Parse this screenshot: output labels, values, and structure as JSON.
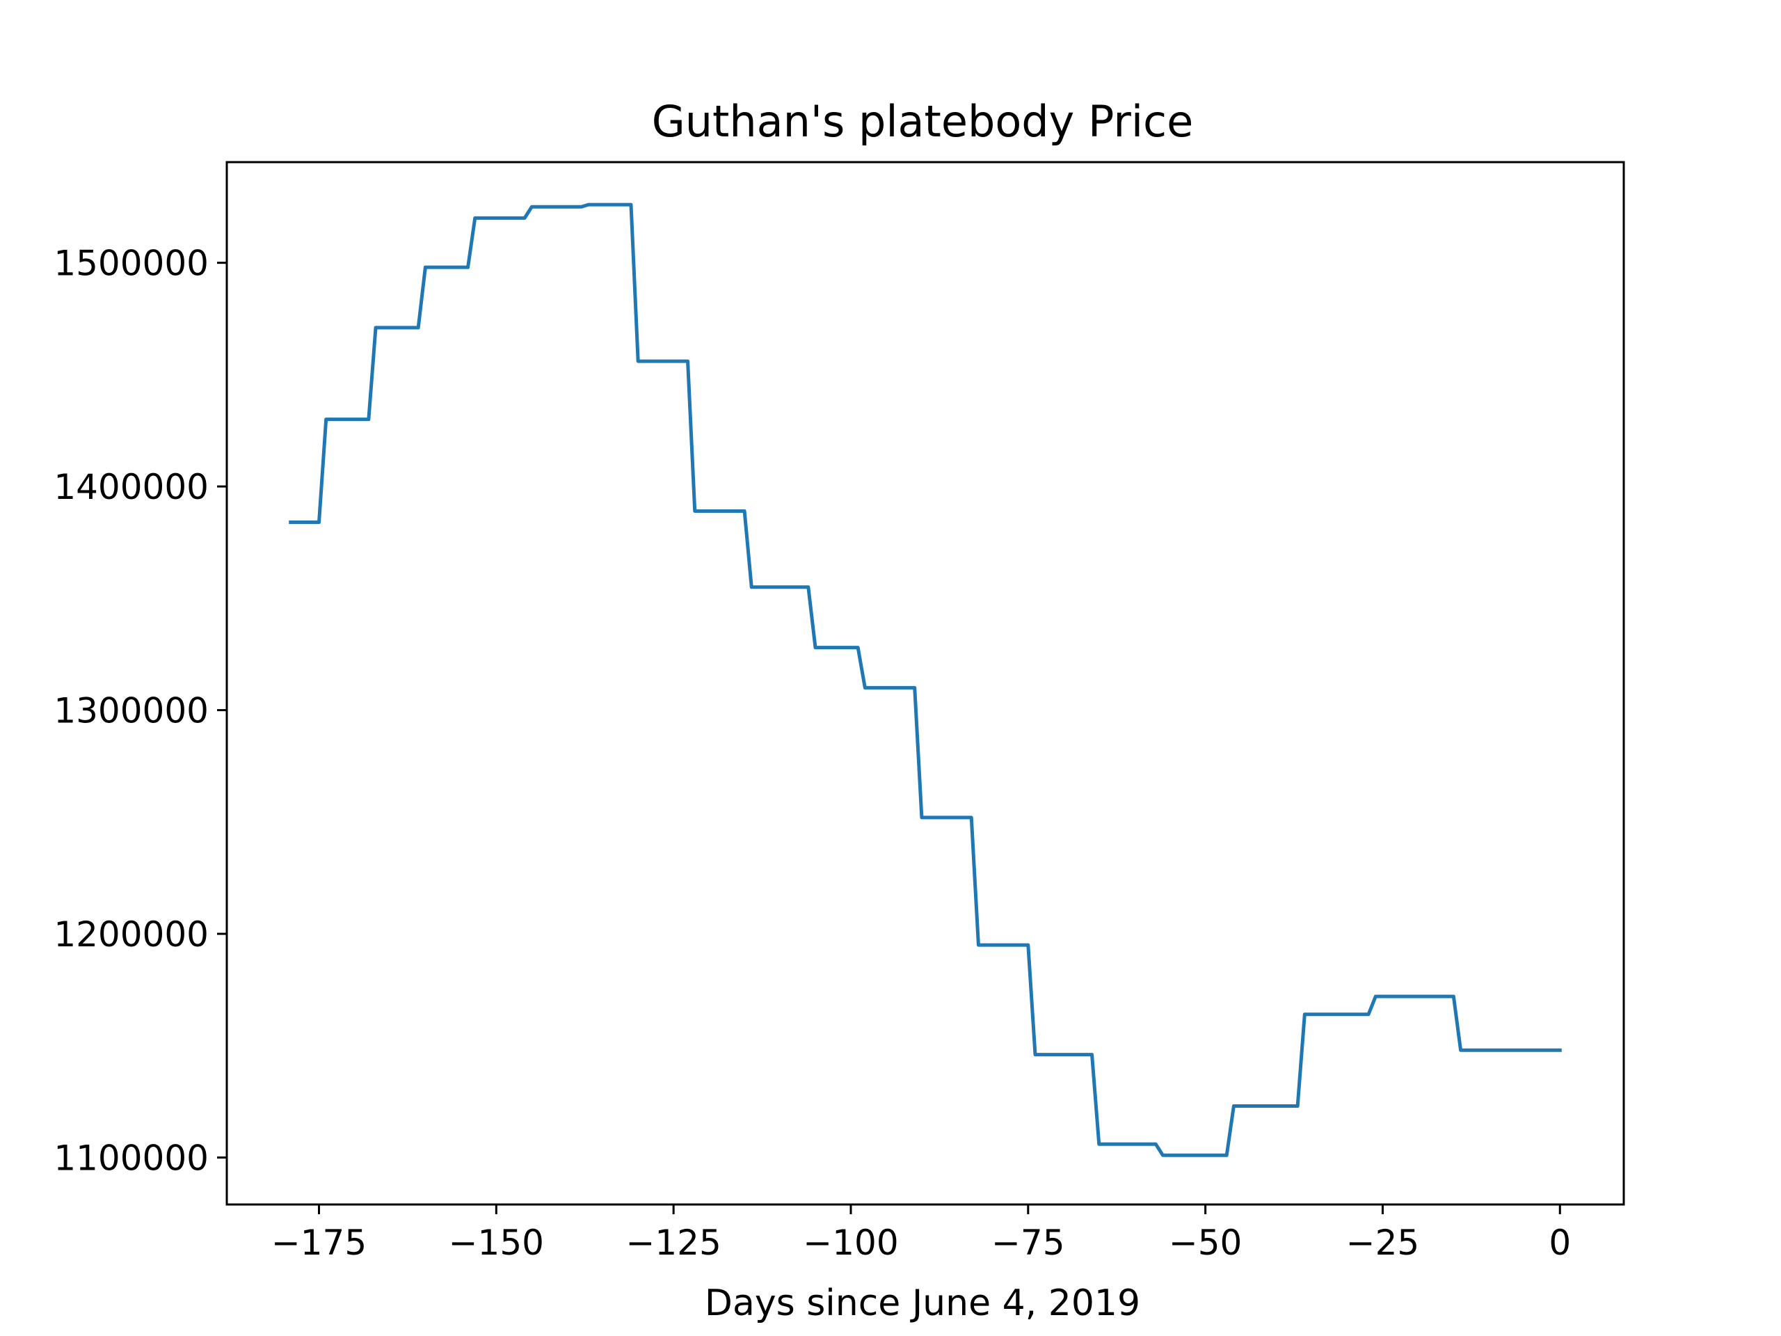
{
  "chart_data": {
    "type": "line",
    "title": "Guthan's platebody Price",
    "xlabel": "Days since June 4, 2019",
    "ylabel": "",
    "xlim": [
      -188,
      9
    ],
    "ylim": [
      1079000,
      1545000
    ],
    "xticks": [
      -175,
      -150,
      -125,
      -100,
      -75,
      -50,
      -25,
      0
    ],
    "xtick_labels": [
      "−175",
      "−150",
      "−125",
      "−100",
      "−75",
      "−50",
      "−25",
      "0"
    ],
    "yticks": [
      1100000,
      1200000,
      1300000,
      1400000,
      1500000
    ],
    "ytick_labels": [
      "1100000",
      "1200000",
      "1300000",
      "1400000",
      "1500000"
    ],
    "grid": false,
    "series": [
      {
        "color": "#1f77b4",
        "x": [
          -179,
          -175,
          -174,
          -168,
          -167,
          -161,
          -160,
          -154,
          -153,
          -146,
          -145,
          -138,
          -137,
          -131,
          -130,
          -123,
          -122,
          -115,
          -114,
          -106,
          -105,
          -99,
          -98,
          -91,
          -90,
          -83,
          -82,
          -75,
          -74,
          -66,
          -65,
          -57,
          -56,
          -47,
          -46,
          -37,
          -36,
          -27,
          -26,
          -15,
          -14,
          0
        ],
        "y": [
          1384000,
          1384000,
          1430000,
          1430000,
          1471000,
          1471000,
          1498000,
          1498000,
          1520000,
          1520000,
          1525000,
          1525000,
          1526000,
          1526000,
          1456000,
          1456000,
          1389000,
          1389000,
          1355000,
          1355000,
          1328000,
          1328000,
          1310000,
          1310000,
          1252000,
          1252000,
          1195000,
          1195000,
          1146000,
          1146000,
          1106000,
          1106000,
          1101000,
          1101000,
          1123000,
          1123000,
          1164000,
          1164000,
          1172000,
          1172000,
          1148000,
          1148000
        ]
      }
    ]
  }
}
